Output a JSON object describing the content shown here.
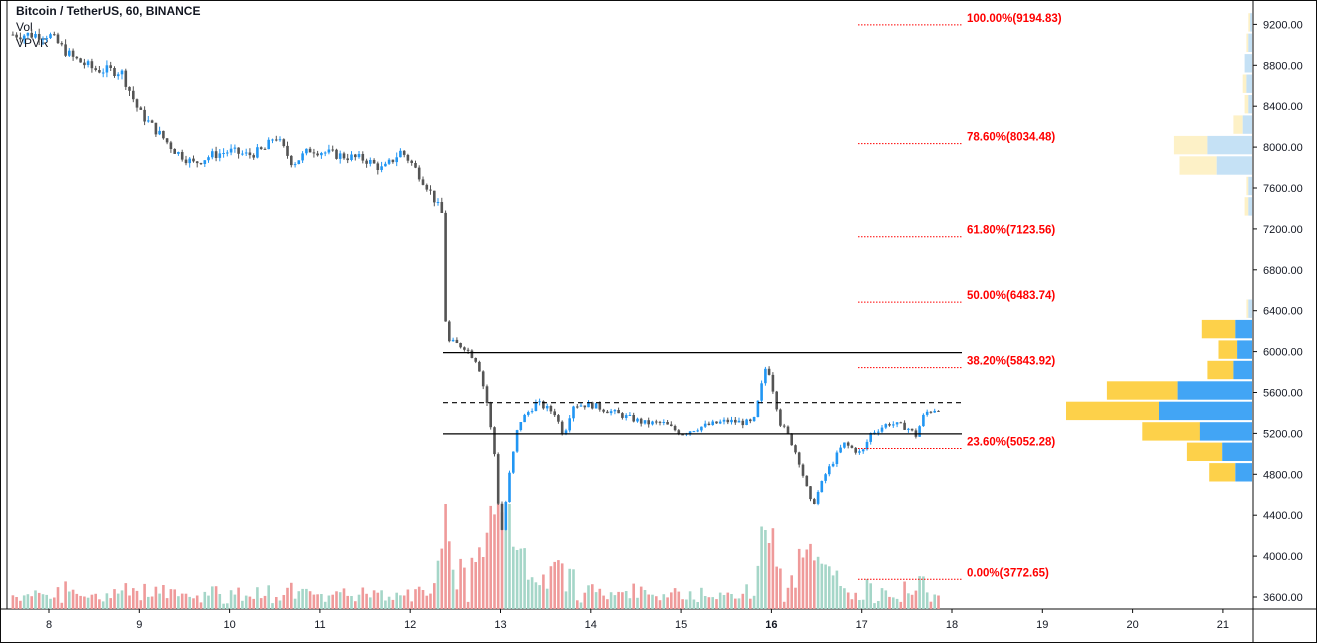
{
  "legend": {
    "title": "Bitcoin / TetherUS, 60, BINANCE",
    "vol": "Vol",
    "vpvr": "VPVR"
  },
  "chart_data": {
    "type": "candlestick",
    "symbol": "Bitcoin / TetherUS",
    "interval": "60",
    "exchange": "BINANCE",
    "ylim": [
      3500,
      9300
    ],
    "y_ticks": [
      "9200.00",
      "8800.00",
      "8400.00",
      "8000.00",
      "7600.00",
      "7200.00",
      "6800.00",
      "6400.00",
      "6000.00",
      "5600.00",
      "5200.00",
      "4800.00",
      "4400.00",
      "4000.00",
      "3600.00"
    ],
    "x_ticks": [
      "8",
      "9",
      "10",
      "11",
      "12",
      "13",
      "14",
      "15",
      "16",
      "17",
      "18",
      "19",
      "20",
      "21"
    ],
    "bold_x_ticks": [
      "16"
    ],
    "price_path": [
      [
        "8",
        9100
      ],
      [
        "8.25",
        8880
      ],
      [
        "8.5",
        8760
      ],
      [
        "8.8",
        8740
      ],
      [
        "9",
        8340
      ],
      [
        "9.2",
        8150
      ],
      [
        "9.4",
        7960
      ],
      [
        "9.6",
        7840
      ],
      [
        "9.8",
        7920
      ],
      [
        "10",
        7960
      ],
      [
        "10.2",
        7920
      ],
      [
        "10.4",
        7980
      ],
      [
        "10.5",
        8120
      ],
      [
        "10.7",
        7840
      ],
      [
        "10.9",
        7980
      ],
      [
        "11.2",
        7920
      ],
      [
        "11.5",
        7880
      ],
      [
        "11.7",
        7780
      ],
      [
        "11.9",
        7960
      ],
      [
        "12",
        7860
      ],
      [
        "12.2",
        7600
      ],
      [
        "12.35",
        7350
      ],
      [
        "12.4",
        6100
      ],
      [
        "12.6",
        6050
      ],
      [
        "12.75",
        5900
      ],
      [
        "12.85",
        5500
      ],
      [
        "12.95",
        4900
      ],
      [
        "13",
        4150
      ],
      [
        "13.1",
        4800
      ],
      [
        "13.2",
        5300
      ],
      [
        "13.4",
        5500
      ],
      [
        "13.6",
        5400
      ],
      [
        "13.7",
        5180
      ],
      [
        "13.8",
        5480
      ],
      [
        "14",
        5480
      ],
      [
        "14.2",
        5420
      ],
      [
        "14.4",
        5360
      ],
      [
        "14.6",
        5300
      ],
      [
        "14.8",
        5300
      ],
      [
        "15",
        5200
      ],
      [
        "15.2",
        5260
      ],
      [
        "15.5",
        5320
      ],
      [
        "15.8",
        5300
      ],
      [
        "15.95",
        5900
      ],
      [
        "16.1",
        5300
      ],
      [
        "16.2",
        5160
      ],
      [
        "16.3",
        4950
      ],
      [
        "16.45",
        4480
      ],
      [
        "16.6",
        4800
      ],
      [
        "16.8",
        5100
      ],
      [
        "17",
        5000
      ],
      [
        "17.1",
        5200
      ],
      [
        "17.3",
        5300
      ],
      [
        "17.5",
        5260
      ],
      [
        "17.6",
        5180
      ],
      [
        "17.7",
        5400
      ],
      [
        "17.85",
        5450
      ]
    ],
    "volume_profile": [
      {
        "price": 9200,
        "buy": 0.02,
        "sell": 0.01
      },
      {
        "price": 9000,
        "buy": 0.03,
        "sell": 0.02
      },
      {
        "price": 8800,
        "buy": 0.04,
        "sell": 0.04
      },
      {
        "price": 8600,
        "buy": 0.05,
        "sell": 0.03
      },
      {
        "price": 8400,
        "buy": 0.04,
        "sell": 0.02
      },
      {
        "price": 8200,
        "buy": 0.1,
        "sell": 0.05
      },
      {
        "price": 8000,
        "buy": 0.42,
        "sell": 0.24
      },
      {
        "price": 7800,
        "buy": 0.39,
        "sell": 0.19
      },
      {
        "price": 7600,
        "buy": 0.03,
        "sell": 0.02
      },
      {
        "price": 7400,
        "buy": 0.04,
        "sell": 0.02
      },
      {
        "price": 6400,
        "buy": 0.03,
        "sell": 0.02
      },
      {
        "price": 6200,
        "buy": 0.27,
        "sell": 0.09
      },
      {
        "price": 6000,
        "buy": 0.18,
        "sell": 0.08
      },
      {
        "price": 5800,
        "buy": 0.24,
        "sell": 0.1
      },
      {
        "price": 5600,
        "buy": 0.78,
        "sell": 0.4
      },
      {
        "price": 5400,
        "buy": 1.0,
        "sell": 0.5
      },
      {
        "price": 5200,
        "buy": 0.59,
        "sell": 0.28
      },
      {
        "price": 5000,
        "buy": 0.35,
        "sell": 0.16
      },
      {
        "price": 4800,
        "buy": 0.23,
        "sell": 0.09
      }
    ],
    "volume_profile_colors": {
      "buy": "#fdd14a",
      "sell": "#42a5f5",
      "buy_faded": "#fdf1c7",
      "sell_faded": "#c5e1f5"
    },
    "fib_levels": [
      {
        "label": "100.00%(9194.83)",
        "price": 9194.83
      },
      {
        "label": "78.60%(8034.48)",
        "price": 8034.48
      },
      {
        "label": "61.80%(7123.56)",
        "price": 7123.56
      },
      {
        "label": "50.00%(6483.74)",
        "price": 6483.74
      },
      {
        "label": "38.20%(5843.92)",
        "price": 5843.92
      },
      {
        "label": "23.60%(5052.28)",
        "price": 5052.28
      },
      {
        "label": "0.00%(3772.65)",
        "price": 3772.65
      }
    ],
    "horizontal_lines": [
      {
        "price": 5990,
        "style": "solid"
      },
      {
        "price": 5500,
        "style": "dashed"
      },
      {
        "price": 5195,
        "style": "solid"
      }
    ],
    "colors": {
      "up": "#2196f3",
      "down": "#545454",
      "vol_up": "#a5d6c8",
      "vol_down": "#ef9a9a",
      "fib": "#ff0000",
      "lines": "#000000"
    },
    "grid": false,
    "legend_position": "top-left"
  }
}
